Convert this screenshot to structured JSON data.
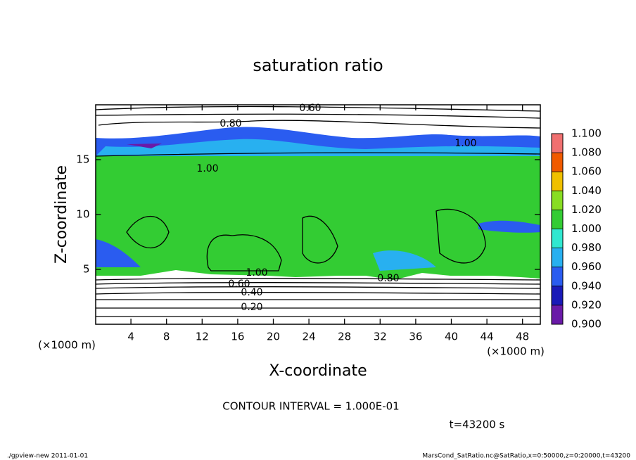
{
  "chart_data": {
    "type": "contour",
    "title": "saturation ratio",
    "x_label": "X-coordinate",
    "y_label": "Z-coordinate",
    "x_unit": "(×1000 m)",
    "y_unit": "(×1000 m)",
    "xlim": [
      0,
      50
    ],
    "ylim": [
      0,
      20
    ],
    "xticks": [
      4,
      8,
      12,
      16,
      20,
      24,
      28,
      32,
      36,
      40,
      44,
      48
    ],
    "yticks": [
      5,
      10,
      15
    ],
    "colorbar": {
      "ticks": [
        {
          "value": 0.9,
          "label": "0.900"
        },
        {
          "value": 0.92,
          "label": "0.920"
        },
        {
          "value": 0.94,
          "label": "0.940"
        },
        {
          "value": 0.96,
          "label": "0.960"
        },
        {
          "value": 0.98,
          "label": "0.980"
        },
        {
          "value": 1.0,
          "label": "1.000"
        },
        {
          "value": 1.02,
          "label": "1.020"
        },
        {
          "value": 1.04,
          "label": "1.040"
        },
        {
          "value": 1.06,
          "label": "1.060"
        },
        {
          "value": 1.08,
          "label": "1.080"
        },
        {
          "value": 1.1,
          "label": "1.100"
        }
      ],
      "colors": [
        "#6a1aa8",
        "#1a1ab8",
        "#2a5cf0",
        "#28b0f0",
        "#30e8d0",
        "#33cc33",
        "#88dd22",
        "#f0c000",
        "#f05a00",
        "#f07070"
      ]
    },
    "contour_labels": [
      "0.60",
      "0.80",
      "1.00",
      "1.00",
      "1.00",
      "0.80",
      "0.60",
      "0.40",
      "0.20"
    ],
    "contour_interval": "CONTOUR INTERVAL = 1.000E-01",
    "time_label": "t=43200 s",
    "footer_left": "./gpview-new  2011-01-01",
    "footer_right": "MarsCond_SatRatio.nc@SatRatio,x=0:50000,z=0:20000,t=43200"
  }
}
